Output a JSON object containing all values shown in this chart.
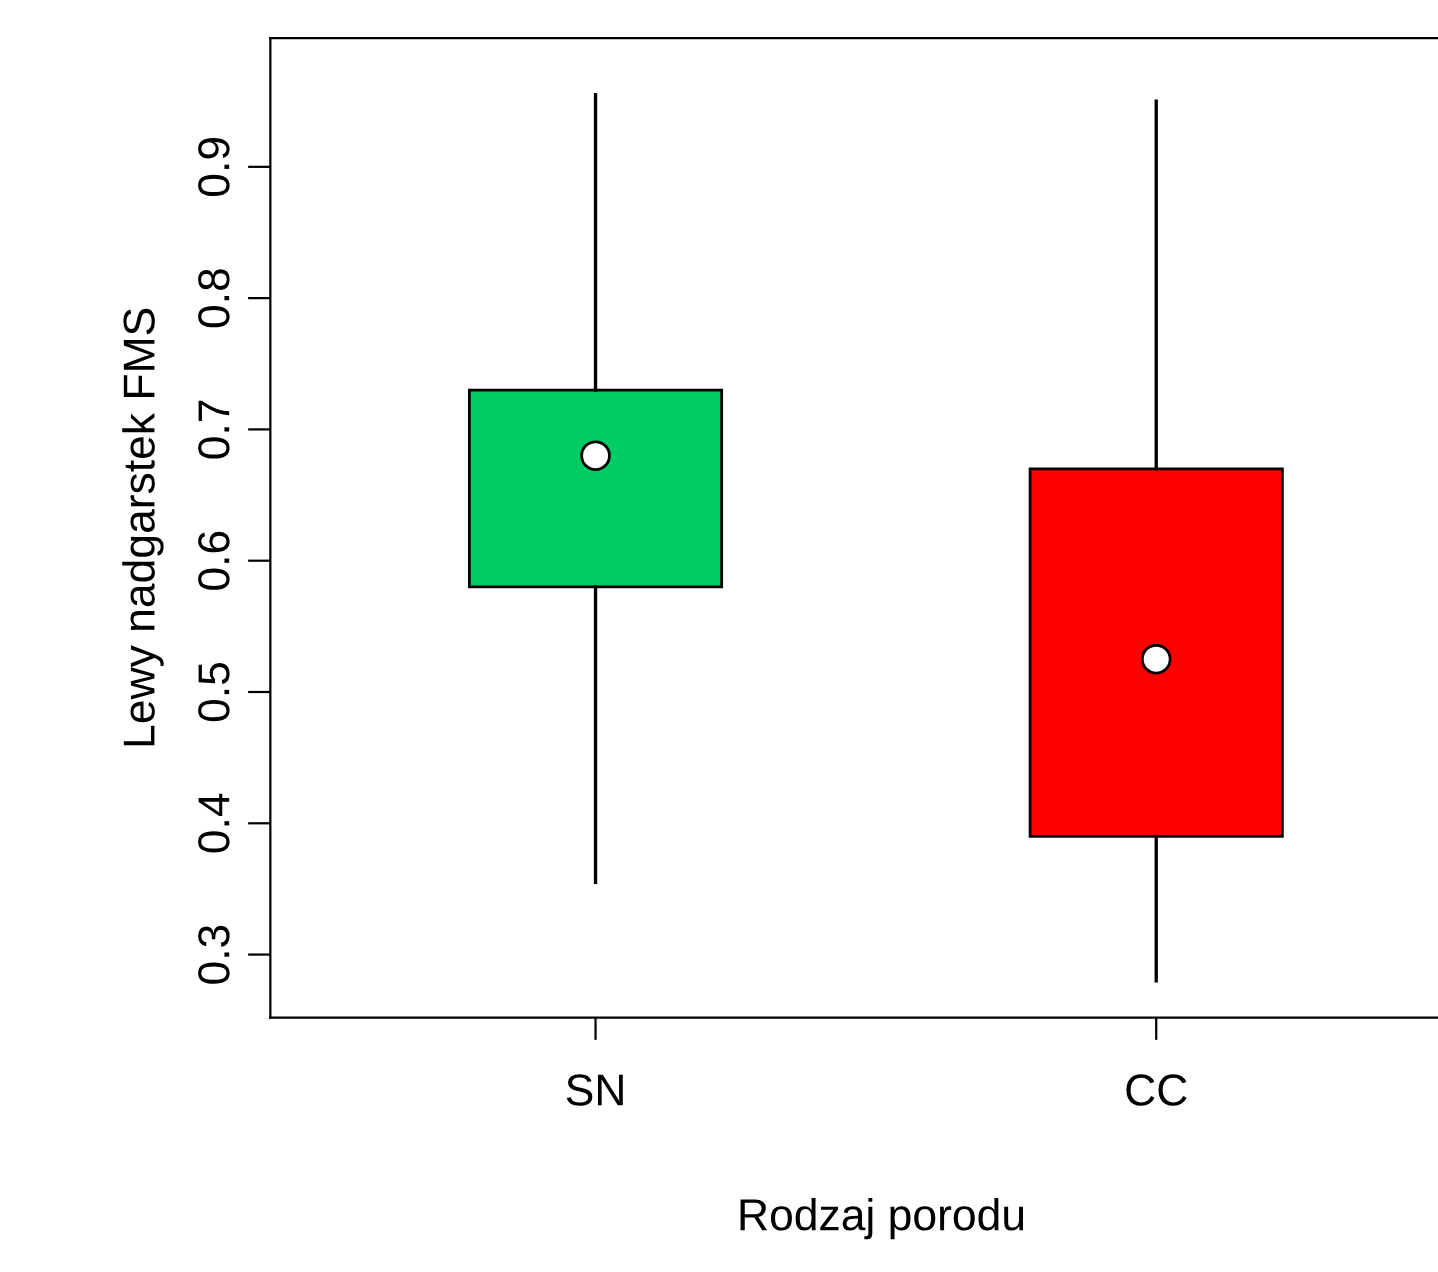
{
  "chart_data": {
    "type": "box",
    "xlabel": "Rodzaj porodu",
    "ylabel": "Lewy nadgarstek FMS",
    "categories": [
      "SN",
      "CC"
    ],
    "boxes": [
      {
        "low": 0.355,
        "q1": 0.58,
        "median": 0.68,
        "q3": 0.73,
        "high": 0.955
      },
      {
        "low": 0.28,
        "q1": 0.39,
        "median": 0.525,
        "q3": 0.67,
        "high": 0.95
      }
    ],
    "colors": [
      "#00cc66",
      "#ff0000"
    ],
    "ylim": [
      0.252,
      0.998
    ],
    "yticks": [
      0.3,
      0.4,
      0.5,
      0.6,
      0.7,
      0.8,
      0.9
    ]
  }
}
